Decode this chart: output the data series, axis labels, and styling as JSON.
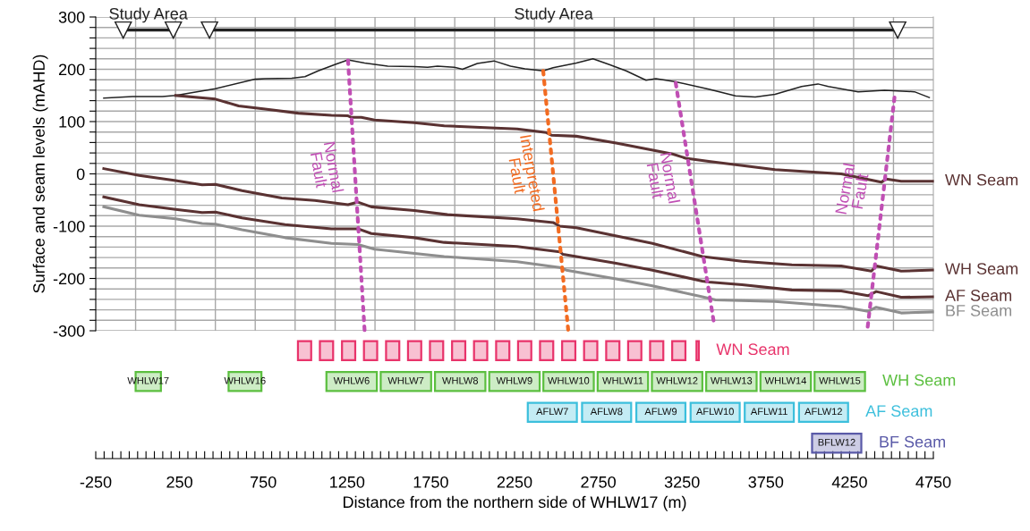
{
  "chart_data": [
    {
      "type": "line",
      "ylabel": "Surface and seam levels (mAHD)",
      "xlim": [
        -250,
        4750
      ],
      "ylim": [
        -300,
        300
      ],
      "grid": true,
      "tick_labels": "y",
      "xticks": [
        {
          "value": -12,
          "label": null
        },
        {
          "value": 226,
          "label": null
        },
        {
          "value": 464,
          "label": null
        },
        {
          "value": 702,
          "label": null
        },
        {
          "value": 940,
          "label": null
        },
        {
          "value": 1179,
          "label": null
        },
        {
          "value": 1417,
          "label": null
        },
        {
          "value": 1655,
          "label": null
        },
        {
          "value": 1893,
          "label": null
        },
        {
          "value": 2131,
          "label": null
        },
        {
          "value": 2369,
          "label": null
        },
        {
          "value": 2607,
          "label": null
        },
        {
          "value": 2845,
          "label": null
        },
        {
          "value": 3083,
          "label": null
        },
        {
          "value": 3321,
          "label": null
        },
        {
          "value": 3560,
          "label": null
        },
        {
          "value": 3798,
          "label": null
        },
        {
          "value": 4036,
          "label": null
        },
        {
          "value": 4274,
          "label": null
        },
        {
          "value": 4512,
          "label": null
        }
      ],
      "yticks": [
        300,
        {
          "value": 280,
          "label": null
        },
        {
          "value": 260,
          "label": null
        },
        {
          "value": 240,
          "label": null
        },
        {
          "value": 220,
          "label": null
        },
        200,
        {
          "value": 180,
          "label": null
        },
        {
          "value": 160,
          "label": null
        },
        {
          "value": 140,
          "label": null
        },
        {
          "value": 120,
          "label": null
        },
        100,
        {
          "value": 80,
          "label": null
        },
        {
          "value": 60,
          "label": null
        },
        {
          "value": 40,
          "label": null
        },
        {
          "value": 20,
          "label": null
        },
        0,
        {
          "value": -20,
          "label": null
        },
        {
          "value": -40,
          "label": null
        },
        {
          "value": -60,
          "label": null
        },
        {
          "value": -80,
          "label": null
        },
        -100,
        {
          "value": -120,
          "label": null
        },
        {
          "value": -140,
          "label": null
        },
        {
          "value": -160,
          "label": null
        },
        {
          "value": -180,
          "label": null
        },
        -200,
        {
          "value": -220,
          "label": null
        },
        {
          "value": -240,
          "label": null
        },
        {
          "value": -260,
          "label": null
        },
        {
          "value": -280,
          "label": null
        },
        -300
      ],
      "series": [
        {
          "color": "#222222",
          "x": [
            -202,
            -30,
            148,
            227,
            464,
            702,
            761,
            920,
            999,
            1078,
            1177,
            1256,
            1355,
            1493,
            1652,
            1731,
            1790,
            1889,
            1939,
            2028,
            2127,
            2226,
            2312,
            2421,
            2480,
            2619,
            2718,
            2816,
            2916,
            3035,
            3094,
            3212,
            3409,
            3569,
            3687,
            3805,
            3964,
            4061,
            4123,
            4301,
            4459,
            4637,
            4726
          ],
          "values": [
            145,
            148,
            148,
            150,
            163,
            181,
            182,
            183,
            186,
            197,
            209,
            218,
            212,
            206,
            205,
            204,
            206,
            204,
            200,
            211,
            216,
            206,
            201,
            197,
            203,
            212,
            220,
            209,
            197,
            179,
            182,
            176,
            162,
            149,
            147,
            152,
            167,
            172,
            167,
            157,
            160,
            157,
            146
          ]
        },
        {
          "name": "WN Seam",
          "color": "#5a3232",
          "x": [
            227,
            464,
            603,
            761,
            959,
            1157,
            1256,
            1276,
            1335,
            1414,
            1652,
            1830,
            2107,
            2265,
            2440,
            2470,
            2619,
            2856,
            3193,
            3271,
            3409,
            3805,
            4200,
            4439,
            4468,
            4558,
            4745
          ],
          "values": [
            150,
            143,
            130,
            124,
            116,
            112,
            111,
            108,
            108,
            103,
            98,
            92,
            88,
            86,
            79,
            74,
            72,
            59,
            38,
            30,
            24,
            8,
            0,
            -16,
            -10,
            -14,
            -14
          ]
        },
        {
          "name": "WH Seam",
          "color": "#5a3232",
          "x": [
            -202,
            9,
            227,
            385,
            464,
            623,
            860,
            1058,
            1256,
            1315,
            1395,
            1652,
            1850,
            2265,
            2480,
            2520,
            2619,
            3073,
            3371,
            3608,
            3905,
            4200,
            4380,
            4409,
            4558,
            4745
          ],
          "values": [
            10,
            -3,
            -13,
            -21,
            -20,
            -32,
            -46,
            -51,
            -59,
            -54,
            -63,
            -70,
            -78,
            -86,
            -93,
            -100,
            -103,
            -133,
            -158,
            -167,
            -174,
            -176,
            -186,
            -176,
            -186,
            -184
          ]
        },
        {
          "name": "AF Seam",
          "color": "#5a3232",
          "x": [
            -202,
            9,
            227,
            385,
            464,
            623,
            880,
            1157,
            1315,
            1395,
            1652,
            1830,
            2265,
            2520,
            2540,
            2856,
            3073,
            3371,
            3409,
            3608,
            3905,
            4200,
            4360,
            4409,
            4558,
            4745
          ],
          "values": [
            -44,
            -59,
            -68,
            -74,
            -73,
            -84,
            -97,
            -105,
            -105,
            -114,
            -122,
            -131,
            -139,
            -149,
            -154,
            -171,
            -184,
            -205,
            -207,
            -212,
            -222,
            -224,
            -233,
            -225,
            -236,
            -235
          ]
        },
        {
          "name": "BF Seam",
          "color": "#8e8e8e",
          "x": [
            -202,
            9,
            227,
            385,
            464,
            623,
            880,
            1157,
            1315,
            1414,
            1830,
            2265,
            2520,
            2559,
            2856,
            3073,
            3371,
            3450,
            3805,
            4200,
            4360,
            4409,
            4558,
            4745
          ],
          "values": [
            -63,
            -79,
            -86,
            -95,
            -96,
            -107,
            -122,
            -133,
            -135,
            -144,
            -158,
            -168,
            -179,
            -184,
            -201,
            -214,
            -235,
            -241,
            -244,
            -254,
            -263,
            -255,
            -266,
            -264
          ]
        },
        {
          "color": "#c04fb4",
          "line_style": "dotted",
          "x": [
            1256,
            1355
          ],
          "values": [
            217,
            -300
          ]
        },
        {
          "color": "#f26b21",
          "line_style": "dotted",
          "x": [
            2421,
            2570
          ],
          "values": [
            197,
            -298
          ]
        },
        {
          "color": "#c04fb4",
          "line_style": "dotted",
          "x": [
            3212,
            3441
          ],
          "values": [
            174,
            -287
          ]
        },
        {
          "color": "#c04fb4",
          "line_style": "dotted",
          "x": [
            4518,
            4356
          ],
          "values": [
            146,
            -298
          ]
        },
        {
          "name": "Study Area",
          "color": "#222222",
          "marker": "triangle",
          "x": [
            -86,
            213
          ],
          "values": [
            275,
            275
          ]
        },
        {
          "name": "Study Area",
          "color": "#222222",
          "marker": "triangle",
          "x": [
            429,
            4537
          ],
          "values": [
            275,
            275
          ]
        }
      ],
      "annotations": [
        "Normal\nFault",
        "Interpreted\nFault",
        "Normal\nFault",
        "Normal\nFault"
      ]
    },
    {
      "type": "bar",
      "orientation": "horizontal",
      "tick_labels": "x",
      "xlabel": "Distance from the northern side of WHLW17 (m)",
      "xlim": [
        -250,
        4750
      ],
      "categories": [
        "WN Seam",
        "WH Seam",
        "AF Seam",
        "BF Seam"
      ],
      "xticks": [
        -250,
        {
          "value": -200,
          "label": null
        },
        {
          "value": -150,
          "label": null
        },
        {
          "value": -100,
          "label": null
        },
        {
          "value": -50,
          "label": null
        },
        {
          "value": 0,
          "label": null
        },
        {
          "value": 50,
          "label": null
        },
        {
          "value": 100,
          "label": null
        },
        {
          "value": 150,
          "label": null
        },
        {
          "value": 200,
          "label": null
        },
        250,
        {
          "value": 300,
          "label": null
        },
        {
          "value": 350,
          "label": null
        },
        {
          "value": 400,
          "label": null
        },
        {
          "value": 450,
          "label": null
        },
        {
          "value": 500,
          "label": null
        },
        {
          "value": 550,
          "label": null
        },
        {
          "value": 600,
          "label": null
        },
        {
          "value": 650,
          "label": null
        },
        {
          "value": 700,
          "label": null
        },
        750,
        {
          "value": 800,
          "label": null
        },
        {
          "value": 850,
          "label": null
        },
        {
          "value": 900,
          "label": null
        },
        {
          "value": 950,
          "label": null
        },
        {
          "value": 1000,
          "label": null
        },
        {
          "value": 1050,
          "label": null
        },
        {
          "value": 1100,
          "label": null
        },
        {
          "value": 1150,
          "label": null
        },
        {
          "value": 1200,
          "label": null
        },
        1250,
        {
          "value": 1300,
          "label": null
        },
        {
          "value": 1350,
          "label": null
        },
        {
          "value": 1400,
          "label": null
        },
        {
          "value": 1450,
          "label": null
        },
        {
          "value": 1500,
          "label": null
        },
        {
          "value": 1550,
          "label": null
        },
        {
          "value": 1600,
          "label": null
        },
        {
          "value": 1650,
          "label": null
        },
        {
          "value": 1700,
          "label": null
        },
        1750,
        {
          "value": 1800,
          "label": null
        },
        {
          "value": 1850,
          "label": null
        },
        {
          "value": 1900,
          "label": null
        },
        {
          "value": 1950,
          "label": null
        },
        {
          "value": 2000,
          "label": null
        },
        {
          "value": 2050,
          "label": null
        },
        {
          "value": 2100,
          "label": null
        },
        {
          "value": 2150,
          "label": null
        },
        {
          "value": 2200,
          "label": null
        },
        2250,
        {
          "value": 2300,
          "label": null
        },
        {
          "value": 2350,
          "label": null
        },
        {
          "value": 2400,
          "label": null
        },
        {
          "value": 2450,
          "label": null
        },
        {
          "value": 2500,
          "label": null
        },
        {
          "value": 2550,
          "label": null
        },
        {
          "value": 2600,
          "label": null
        },
        {
          "value": 2650,
          "label": null
        },
        {
          "value": 2700,
          "label": null
        },
        2750,
        {
          "value": 2800,
          "label": null
        },
        {
          "value": 2850,
          "label": null
        },
        {
          "value": 2900,
          "label": null
        },
        {
          "value": 2950,
          "label": null
        },
        {
          "value": 3000,
          "label": null
        },
        {
          "value": 3050,
          "label": null
        },
        {
          "value": 3100,
          "label": null
        },
        {
          "value": 3150,
          "label": null
        },
        {
          "value": 3200,
          "label": null
        },
        3250,
        {
          "value": 3300,
          "label": null
        },
        {
          "value": 3350,
          "label": null
        },
        {
          "value": 3400,
          "label": null
        },
        {
          "value": 3450,
          "label": null
        },
        {
          "value": 3500,
          "label": null
        },
        {
          "value": 3550,
          "label": null
        },
        {
          "value": 3600,
          "label": null
        },
        {
          "value": 3650,
          "label": null
        },
        {
          "value": 3700,
          "label": null
        },
        3750,
        {
          "value": 3800,
          "label": null
        },
        {
          "value": 3850,
          "label": null
        },
        {
          "value": 3900,
          "label": null
        },
        {
          "value": 3950,
          "label": null
        },
        {
          "value": 4000,
          "label": null
        },
        {
          "value": 4050,
          "label": null
        },
        {
          "value": 4100,
          "label": null
        },
        {
          "value": 4150,
          "label": null
        },
        {
          "value": 4200,
          "label": null
        },
        4250,
        {
          "value": 4300,
          "label": null
        },
        {
          "value": 4350,
          "label": null
        },
        {
          "value": 4400,
          "label": null
        },
        {
          "value": 4450,
          "label": null
        },
        {
          "value": 4500,
          "label": null
        },
        {
          "value": 4550,
          "label": null
        },
        {
          "value": 4600,
          "label": null
        },
        {
          "value": 4650,
          "label": null
        },
        {
          "value": 4700,
          "label": null
        },
        4750
      ],
      "series": [
        {
          "colors": [
            "#e8336a",
            "#5bbf3f",
            "#3cbfdc",
            "#5a5aa8"
          ],
          "base": [
            957,
            -12,
            2329,
            4026
          ],
          "values": [
            79,
            151,
            293,
            294
          ],
          "value_labels": [
            null,
            "WHLW17",
            "AFLW7",
            "BFLW12"
          ]
        },
        {
          "colors": [
            "#e8336a",
            "#5bbf3f",
            "#3cbfdc",
            "#5a5aa8"
          ],
          "base": [
            1088,
            543,
            2653,
            null
          ],
          "values": [
            79,
            196,
            293,
            null
          ],
          "value_labels": [
            null,
            "WHLW16",
            "AFLW8",
            null
          ]
        },
        {
          "colors": [
            "#e8336a",
            "#5bbf3f",
            "#3cbfdc",
            "#5a5aa8"
          ],
          "base": [
            1220,
            1127,
            2977,
            null
          ],
          "values": [
            79,
            301,
            293,
            null
          ],
          "value_labels": [
            null,
            "WHLW6",
            "AFLW9",
            null
          ]
        },
        {
          "colors": [
            "#e8336a",
            "#5bbf3f",
            "#3cbfdc",
            "#5a5aa8"
          ],
          "base": [
            1351,
            1451,
            3301,
            null
          ],
          "values": [
            79,
            301,
            293,
            null
          ],
          "value_labels": [
            null,
            "WHLW7",
            "AFLW10",
            null
          ]
        },
        {
          "colors": [
            "#e8336a",
            "#5bbf3f",
            "#3cbfdc",
            "#5a5aa8"
          ],
          "base": [
            1483,
            1775,
            3624,
            null
          ],
          "values": [
            79,
            301,
            293,
            null
          ],
          "value_labels": [
            null,
            "WHLW8",
            "AFLW11",
            null
          ]
        },
        {
          "colors": [
            "#e8336a",
            "#5bbf3f",
            "#3cbfdc",
            "#5a5aa8"
          ],
          "base": [
            1614,
            2099,
            3948,
            null
          ],
          "values": [
            79,
            301,
            293,
            null
          ],
          "value_labels": [
            null,
            "WHLW9",
            "AFLW12",
            null
          ]
        },
        {
          "colors": [
            "#e8336a",
            "#5bbf3f",
            "#3cbfdc",
            "#5a5aa8"
          ],
          "base": [
            1745,
            2422,
            null,
            null
          ],
          "values": [
            79,
            301,
            null,
            null
          ],
          "value_labels": [
            null,
            "WHLW10",
            null,
            null
          ]
        },
        {
          "colors": [
            "#e8336a",
            "#5bbf3f",
            "#3cbfdc",
            "#5a5aa8"
          ],
          "base": [
            1877,
            2746,
            null,
            null
          ],
          "values": [
            79,
            301,
            null,
            null
          ],
          "value_labels": [
            null,
            "WHLW11",
            null,
            null
          ]
        },
        {
          "colors": [
            "#e8336a",
            "#5bbf3f",
            "#3cbfdc",
            "#5a5aa8"
          ],
          "base": [
            2008,
            3070,
            null,
            null
          ],
          "values": [
            79,
            301,
            null,
            null
          ],
          "value_labels": [
            null,
            "WHLW12",
            null,
            null
          ]
        },
        {
          "colors": [
            "#e8336a",
            "#5bbf3f",
            "#3cbfdc",
            "#5a5aa8"
          ],
          "base": [
            2140,
            3394,
            null,
            null
          ],
          "values": [
            79,
            301,
            null,
            null
          ],
          "value_labels": [
            null,
            "WHLW13",
            null,
            null
          ]
        },
        {
          "colors": [
            "#e8336a",
            "#5bbf3f",
            "#3cbfdc",
            "#5a5aa8"
          ],
          "base": [
            2271,
            3718,
            null,
            null
          ],
          "values": [
            79,
            301,
            null,
            null
          ],
          "value_labels": [
            null,
            "WHLW14",
            null,
            null
          ]
        },
        {
          "colors": [
            "#e8336a",
            "#5bbf3f",
            "#3cbfdc",
            "#5a5aa8"
          ],
          "base": [
            2402,
            4041,
            null,
            null
          ],
          "values": [
            79,
            301,
            null,
            null
          ],
          "value_labels": [
            null,
            "WHLW15",
            null,
            null
          ]
        },
        {
          "colors": [
            "#e8336a",
            "#5bbf3f",
            "#3cbfdc",
            "#5a5aa8"
          ],
          "base": [
            2534,
            null,
            null,
            null
          ],
          "values": [
            79,
            null,
            null,
            null
          ]
        },
        {
          "colors": [
            "#e8336a",
            "#5bbf3f",
            "#3cbfdc",
            "#5a5aa8"
          ],
          "base": [
            2665,
            null,
            null,
            null
          ],
          "values": [
            79,
            null,
            null,
            null
          ]
        },
        {
          "colors": [
            "#e8336a",
            "#5bbf3f",
            "#3cbfdc",
            "#5a5aa8"
          ],
          "base": [
            2797,
            null,
            null,
            null
          ],
          "values": [
            79,
            null,
            null,
            null
          ]
        },
        {
          "colors": [
            "#e8336a",
            "#5bbf3f",
            "#3cbfdc",
            "#5a5aa8"
          ],
          "base": [
            2928,
            null,
            null,
            null
          ],
          "values": [
            79,
            null,
            null,
            null
          ]
        },
        {
          "colors": [
            "#e8336a",
            "#5bbf3f",
            "#3cbfdc",
            "#5a5aa8"
          ],
          "base": [
            3059,
            null,
            null,
            null
          ],
          "values": [
            79,
            null,
            null,
            null
          ]
        },
        {
          "colors": [
            "#e8336a",
            "#5bbf3f",
            "#3cbfdc",
            "#5a5aa8"
          ],
          "base": [
            3191,
            null,
            null,
            null
          ],
          "values": [
            79,
            null,
            null,
            null
          ]
        },
        {
          "colors": [
            "#e8336a",
            "#5bbf3f",
            "#3cbfdc",
            "#5a5aa8"
          ],
          "base": [
            3336,
            null,
            null,
            null
          ],
          "values": [
            14,
            null,
            null,
            null
          ]
        }
      ]
    }
  ]
}
